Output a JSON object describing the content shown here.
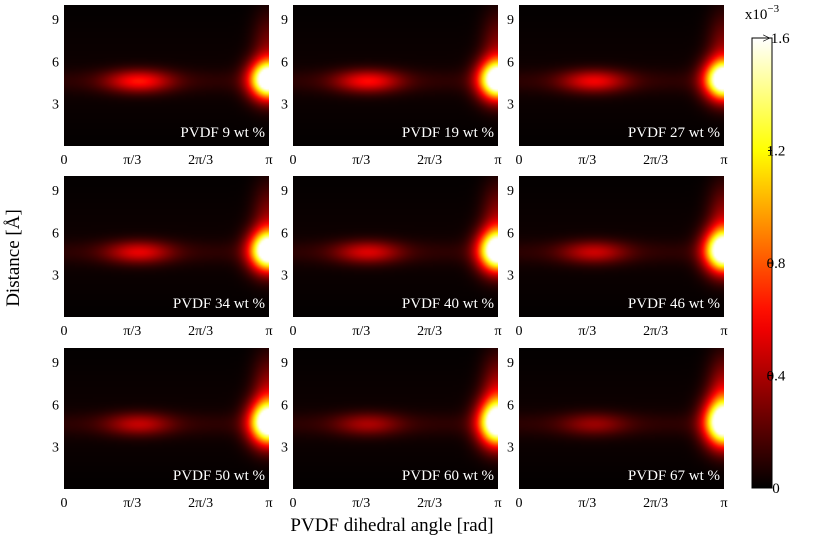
{
  "chart_data": {
    "type": "heatmap",
    "xlabel": "PVDF dihedral angle [rad]",
    "ylabel": "Distance [Å]",
    "xlim": [
      0,
      3.14159
    ],
    "ylim": [
      0,
      10
    ],
    "x_ticks": [
      {
        "value": 0,
        "label": "0"
      },
      {
        "value": 1.0472,
        "label": "π/3"
      },
      {
        "value": 2.0944,
        "label": "2π/3"
      },
      {
        "value": 3.14159,
        "label": "π"
      }
    ],
    "y_ticks": [
      {
        "value": 3,
        "label": "3"
      },
      {
        "value": 6,
        "label": "6"
      },
      {
        "value": 9,
        "label": "9"
      }
    ],
    "colorbar": {
      "min": 0,
      "max": 1.6,
      "scale_label": "x10",
      "scale_exponent": "−3",
      "ticks": [
        {
          "value": 0,
          "label": "0"
        },
        {
          "value": 0.4,
          "label": "0.4"
        },
        {
          "value": 0.8,
          "label": "0.8"
        },
        {
          "value": 1.2,
          "label": "1.2"
        },
        {
          "value": 1.6,
          "label": ">1.6"
        }
      ]
    },
    "panels": [
      {
        "label": "PVDF 9 wt %",
        "peak1": 0.55,
        "peak2": 1.9,
        "peak2_spread": 1.5
      },
      {
        "label": "PVDF 19 wt %",
        "peak1": 0.52,
        "peak2": 1.9,
        "peak2_spread": 1.6
      },
      {
        "label": "PVDF 27 wt %",
        "peak1": 0.48,
        "peak2": 1.9,
        "peak2_spread": 1.6
      },
      {
        "label": "PVDF 34 wt %",
        "peak1": 0.45,
        "peak2": 1.9,
        "peak2_spread": 1.7
      },
      {
        "label": "PVDF 40 wt %",
        "peak1": 0.42,
        "peak2": 1.9,
        "peak2_spread": 1.8
      },
      {
        "label": "PVDF 46 wt %",
        "peak1": 0.38,
        "peak2": 1.9,
        "peak2_spread": 1.9
      },
      {
        "label": "PVDF 50 wt %",
        "peak1": 0.36,
        "peak2": 1.9,
        "peak2_spread": 2.0
      },
      {
        "label": "PVDF 60 wt %",
        "peak1": 0.3,
        "peak2": 1.9,
        "peak2_spread": 2.2
      },
      {
        "label": "PVDF 67 wt %",
        "peak1": 0.26,
        "peak2": 1.9,
        "peak2_spread": 2.3
      }
    ]
  }
}
